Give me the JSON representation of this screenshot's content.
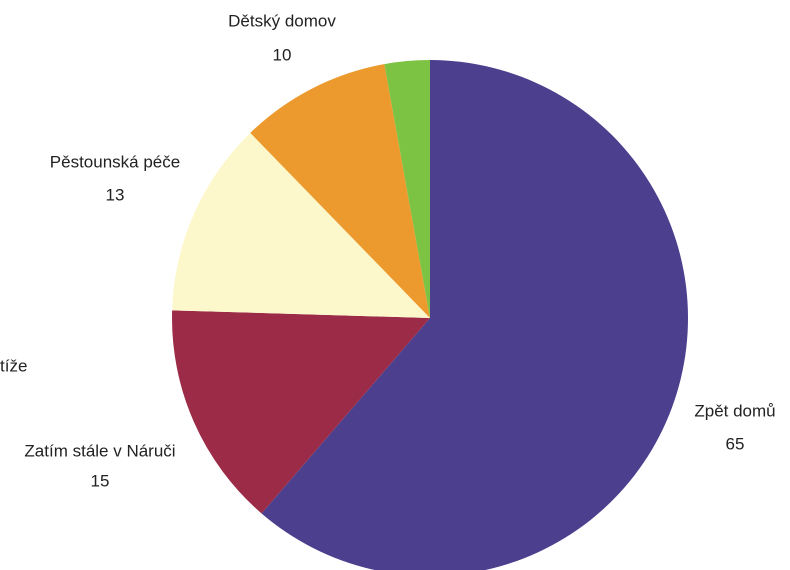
{
  "chart_data": {
    "type": "pie",
    "categories": [
      "Zpět domů",
      "Zatím stále v Náruči",
      "Pěstounská péče",
      "Dětský domov",
      "tíže"
    ],
    "values": [
      65,
      15,
      13,
      10,
      3
    ],
    "colors": [
      "#4b3f8e",
      "#9b2b47",
      "#fdf8cc",
      "#ec9a2e",
      "#7cc243"
    ]
  }
}
